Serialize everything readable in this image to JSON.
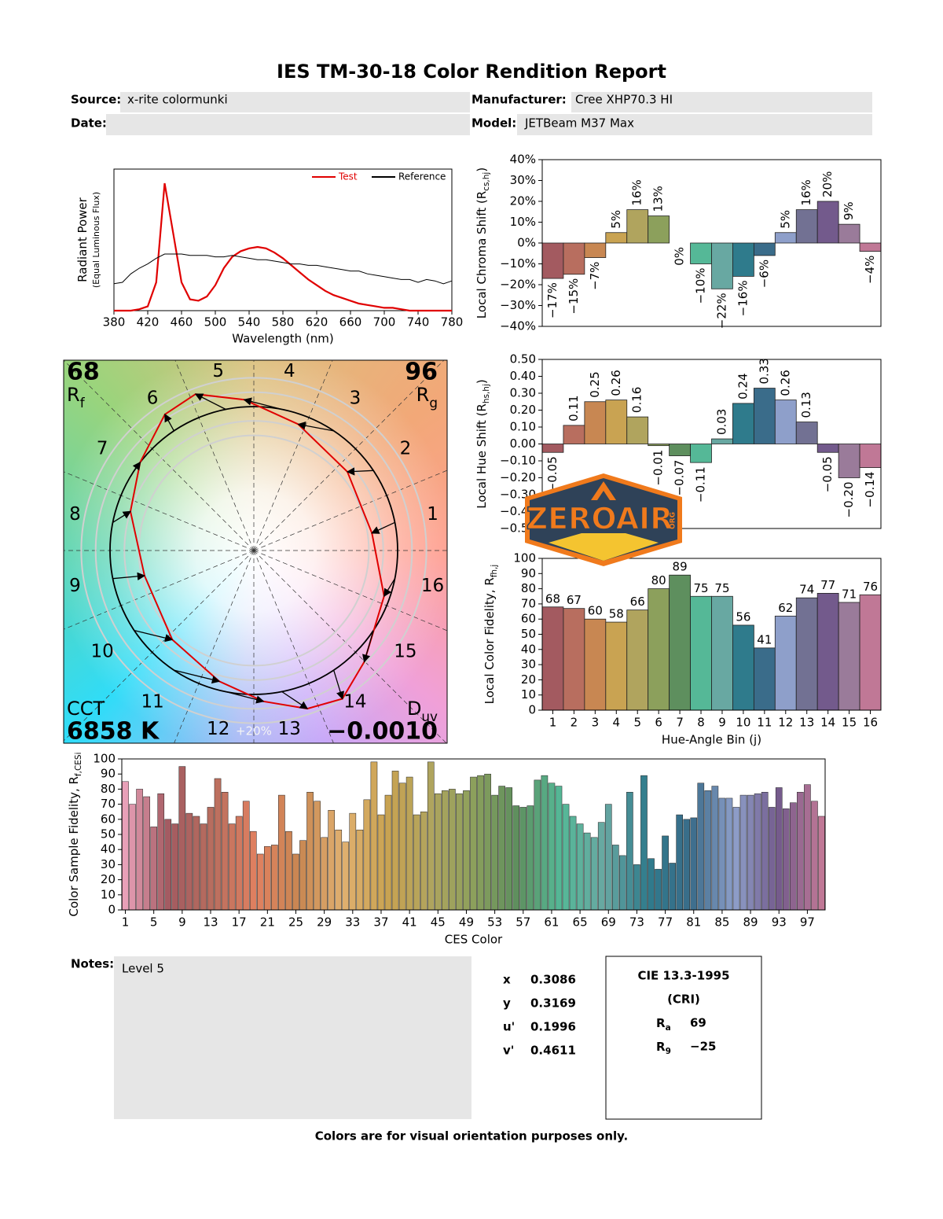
{
  "header": {
    "title": "IES TM-30-18 Color Rendition Report"
  },
  "fields": {
    "source": {
      "label": "Source:",
      "value": "x-rite colormunki"
    },
    "manufacturer": {
      "label": "Manufacturer:",
      "value": "Cree XHP70.3 HI"
    },
    "date": {
      "label": "Date:"
    },
    "model": {
      "label": "Model:",
      "value": "JETBeam M37 Max"
    }
  },
  "chart_data": [
    {
      "type": "line",
      "x": [
        380,
        390,
        400,
        410,
        420,
        430,
        440,
        450,
        460,
        470,
        480,
        490,
        500,
        510,
        520,
        530,
        540,
        550,
        560,
        570,
        580,
        590,
        600,
        610,
        620,
        630,
        640,
        650,
        660,
        670,
        680,
        690,
        700,
        710,
        720,
        730,
        740,
        750,
        760,
        770,
        780
      ],
      "series": [
        {
          "name": "Test",
          "color": "#e00000",
          "values": [
            0,
            0,
            0,
            0.01,
            0.03,
            0.2,
            0.9,
            0.55,
            0.2,
            0.08,
            0.07,
            0.1,
            0.18,
            0.3,
            0.38,
            0.42,
            0.44,
            0.45,
            0.44,
            0.41,
            0.37,
            0.32,
            0.27,
            0.22,
            0.18,
            0.14,
            0.11,
            0.09,
            0.07,
            0.05,
            0.04,
            0.03,
            0.02,
            0.02,
            0.01,
            0,
            0,
            0,
            0,
            0,
            0
          ]
        },
        {
          "name": "Reference",
          "color": "#000000",
          "values": [
            0.19,
            0.2,
            0.26,
            0.3,
            0.33,
            0.37,
            0.4,
            0.4,
            0.4,
            0.39,
            0.39,
            0.39,
            0.38,
            0.38,
            0.39,
            0.38,
            0.37,
            0.36,
            0.36,
            0.35,
            0.34,
            0.33,
            0.33,
            0.32,
            0.32,
            0.31,
            0.3,
            0.29,
            0.28,
            0.28,
            0.26,
            0.25,
            0.24,
            0.23,
            0.22,
            0.22,
            0.2,
            0.22,
            0.21,
            0.19,
            0.21
          ]
        }
      ],
      "xlim": [
        380,
        780
      ],
      "xticks": [
        380,
        420,
        460,
        500,
        540,
        580,
        620,
        660,
        700,
        740,
        780
      ],
      "ylim": [
        0,
        1
      ],
      "x_label": "Wavelength (nm)",
      "y_label": {
        "text": "Radiant Power"
      },
      "y_label_note": "(Equal Luminous Flux)",
      "legend": "upper right"
    },
    {
      "type": "bar",
      "values": [
        -17,
        -15,
        -7,
        5,
        16,
        13,
        0,
        -10,
        -22,
        -16,
        -6,
        5,
        16,
        20,
        9,
        -4
      ],
      "value_labels": [
        "−17%",
        "−15%",
        "−7%",
        "5%",
        "16%",
        "13%",
        "0%",
        "−10%",
        "−22%",
        "−16%",
        "−6%",
        "5%",
        "16%",
        "20%",
        "9%",
        "−4%"
      ],
      "colors": [
        "#a35a60",
        "#b86e5f",
        "#c88752",
        "#c9a352",
        "#b0a45e",
        "#8ca05c",
        "#5e8f5e",
        "#55b897",
        "#68a8a2",
        "#2f7b8c",
        "#3a6c8a",
        "#8e9fca",
        "#727193",
        "#735a8c",
        "#9a7b9a",
        "#c07896"
      ],
      "ylim": [
        -40,
        40
      ],
      "yticks": [
        {
          "value": -40,
          "label": "−40%"
        },
        {
          "value": -30,
          "label": "−30%"
        },
        {
          "value": -20,
          "label": "−20%"
        },
        {
          "value": -10,
          "label": "−10%"
        },
        {
          "value": 0,
          "label": "0%"
        },
        {
          "value": 10,
          "label": "10%"
        },
        {
          "value": 20,
          "label": "20%"
        },
        {
          "value": 30,
          "label": "30%"
        },
        {
          "value": 40,
          "label": "40%"
        }
      ],
      "y_label": {
        "text": "Local Chroma Shift (R",
        "sub": "cs,hj",
        "end": ")"
      },
      "label_style": "rotated"
    },
    {
      "type": "bar",
      "values": [
        -0.05,
        0.11,
        0.25,
        0.26,
        0.16,
        -0.01,
        -0.07,
        -0.11,
        0.03,
        0.24,
        0.33,
        0.26,
        0.13,
        -0.05,
        -0.2,
        -0.14
      ],
      "value_labels": [
        "−0.05",
        "0.11",
        "0.25",
        "0.26",
        "0.16",
        "−0.01",
        "−0.07",
        "−0.11",
        "0.03",
        "0.24",
        "0.33",
        "0.26",
        "0.13",
        "−0.05",
        "−0.20",
        "−0.14"
      ],
      "colors": [
        "#a35a60",
        "#b86e5f",
        "#c88752",
        "#c9a352",
        "#b0a45e",
        "#8ca05c",
        "#5e8f5e",
        "#55b897",
        "#68a8a2",
        "#2f7b8c",
        "#3a6c8a",
        "#8e9fca",
        "#727193",
        "#735a8c",
        "#9a7b9a",
        "#c07896"
      ],
      "ylim": [
        -0.5,
        0.5
      ],
      "yticks": [
        {
          "value": -0.5,
          "label": "−0.50"
        },
        {
          "value": -0.4,
          "label": "−0.40"
        },
        {
          "value": -0.3,
          "label": "−0.30"
        },
        {
          "value": -0.2,
          "label": "−0.20"
        },
        {
          "value": -0.1,
          "label": "−0.10"
        },
        {
          "value": 0,
          "label": "0.00"
        },
        {
          "value": 0.1,
          "label": "0.10"
        },
        {
          "value": 0.2,
          "label": "0.20"
        },
        {
          "value": 0.3,
          "label": "0.30"
        },
        {
          "value": 0.4,
          "label": "0.40"
        },
        {
          "value": 0.5,
          "label": "0.50"
        }
      ],
      "y_label": {
        "text": "Local Hue Shift (R",
        "sub": "hs,hj",
        "end": ")"
      },
      "label_style": "rotated"
    },
    {
      "type": "bar",
      "categories": [
        "1",
        "2",
        "3",
        "4",
        "5",
        "6",
        "7",
        "8",
        "9",
        "10",
        "11",
        "12",
        "13",
        "14",
        "15",
        "16"
      ],
      "values": [
        68,
        67,
        60,
        58,
        66,
        80,
        89,
        75,
        75,
        56,
        41,
        62,
        74,
        77,
        71,
        76
      ],
      "colors": [
        "#a35a60",
        "#b86e5f",
        "#c88752",
        "#c9a352",
        "#b0a45e",
        "#8ca05c",
        "#5e8f5e",
        "#55b897",
        "#68a8a2",
        "#2f7b8c",
        "#3a6c8a",
        "#8e9fca",
        "#727193",
        "#735a8c",
        "#9a7b9a",
        "#c07896"
      ],
      "ylim": [
        0,
        100
      ],
      "yticks": [
        0,
        10,
        20,
        30,
        40,
        50,
        60,
        70,
        80,
        90,
        100
      ],
      "x_label": "Hue-Angle Bin (j)",
      "y_label": {
        "text": "Local Color Fidelity, R",
        "sub": "fh,j"
      },
      "label_style": "above"
    },
    {
      "type": "bar",
      "x": [
        1,
        2,
        3,
        4,
        5,
        6,
        7,
        8,
        9,
        10,
        11,
        12,
        13,
        14,
        15,
        16,
        17,
        18,
        19,
        20,
        21,
        22,
        23,
        24,
        25,
        26,
        27,
        28,
        29,
        30,
        31,
        32,
        33,
        34,
        35,
        36,
        37,
        38,
        39,
        40,
        41,
        42,
        43,
        44,
        45,
        46,
        47,
        48,
        49,
        50,
        51,
        52,
        53,
        54,
        55,
        56,
        57,
        58,
        59,
        60,
        61,
        62,
        63,
        64,
        65,
        66,
        67,
        68,
        69,
        70,
        71,
        72,
        73,
        74,
        75,
        76,
        77,
        78,
        79,
        80,
        81,
        82,
        83,
        84,
        85,
        86,
        87,
        88,
        89,
        90,
        91,
        92,
        93,
        94,
        95,
        96,
        97,
        98,
        99
      ],
      "values": [
        85,
        70,
        80,
        75,
        55,
        77,
        60,
        57,
        95,
        64,
        62,
        57,
        68,
        87,
        78,
        57,
        62,
        72,
        52,
        37,
        42,
        43,
        76,
        52,
        37,
        46,
        78,
        72,
        48,
        66,
        53,
        45,
        64,
        53,
        73,
        98,
        63,
        76,
        92,
        84,
        88,
        63,
        65,
        98,
        77,
        79,
        80,
        77,
        79,
        88,
        89,
        90,
        76,
        82,
        81,
        69,
        68,
        69,
        86,
        89,
        84,
        82,
        70,
        62,
        57,
        51,
        48,
        58,
        70,
        43,
        36,
        78,
        30,
        89,
        34,
        27,
        49,
        31,
        63,
        60,
        61,
        84,
        79,
        82,
        74,
        74,
        68,
        76,
        76,
        77,
        78,
        68,
        81,
        67,
        71,
        78,
        83,
        72,
        62
      ],
      "colormap": [
        "#e8a0b8",
        "#a35a60",
        "#b86e5f",
        "#e08060",
        "#c88752",
        "#e0b070",
        "#c9a352",
        "#b0a45e",
        "#8ca05c",
        "#5e8f5e",
        "#55b897",
        "#68a8a2",
        "#2f7b8c",
        "#3a6c8a",
        "#8e9fca",
        "#735a8c",
        "#c07896"
      ],
      "xlim": [
        0.5,
        99.5
      ],
      "xticks": [
        1,
        5,
        9,
        13,
        17,
        21,
        25,
        29,
        33,
        37,
        41,
        45,
        49,
        53,
        57,
        61,
        65,
        69,
        73,
        77,
        81,
        85,
        89,
        93,
        97
      ],
      "ylim": [
        0,
        100
      ],
      "yticks": [
        0,
        10,
        20,
        30,
        40,
        50,
        60,
        70,
        80,
        90,
        100
      ],
      "x_label": "CES Color",
      "y_label": {
        "text": "Color Sample Fidelity, R",
        "sub": "f,CESi"
      }
    },
    {
      "type": "color_vector",
      "rf": {
        "value": 68,
        "symbol": "R",
        "sub": "f"
      },
      "rg": {
        "value": 96,
        "symbol": "R",
        "sub": "g"
      },
      "cct": {
        "label": "CCT",
        "value": 6858,
        "value_label": "6858 K"
      },
      "duv": {
        "symbol": "D",
        "sub": "uv",
        "value": -0.001,
        "value_label": "−0.0010"
      },
      "hue_labels": [
        "1",
        "2",
        "3",
        "4",
        "5",
        "6",
        "7",
        "8",
        "9",
        "10",
        "11",
        "12",
        "13",
        "14",
        "15",
        "16"
      ],
      "ring_label": "+20%"
    }
  ],
  "logo": {
    "text": "ZEROAIR",
    "sub": "ORG"
  },
  "notes": {
    "label": "Notes:",
    "text": "Level 5"
  },
  "chromaticity": [
    {
      "label": "x",
      "value": 0.3086
    },
    {
      "label": "y",
      "value": 0.3169
    },
    {
      "label": "u'",
      "value": 0.1996
    },
    {
      "label": "v'",
      "value": 0.4611
    }
  ],
  "cri": {
    "title": "CIE 13.3-1995",
    "subtitle": "(CRI)",
    "ra": {
      "symbol": "R",
      "sub": "a",
      "value": 69
    },
    "r9": {
      "symbol": "R",
      "sub": "9",
      "value": -25,
      "value_label": "−25"
    }
  },
  "footer": "Colors are for visual orientation purposes only."
}
